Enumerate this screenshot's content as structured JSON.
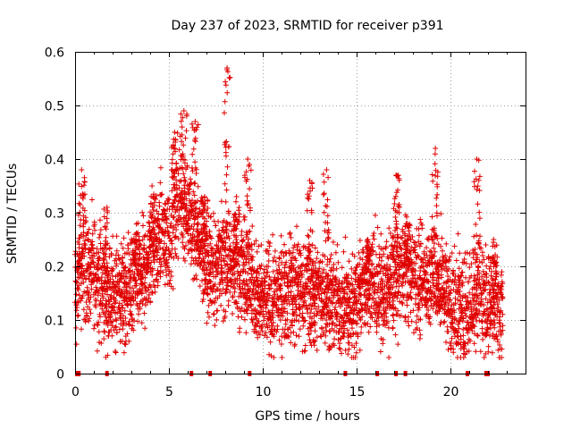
{
  "chart_data": {
    "type": "scatter",
    "title": "Day 237 of 2023, SRMTID for receiver p391",
    "xlabel": "GPS time / hours",
    "ylabel": "SRMTID / TECUs",
    "xlim": [
      0,
      24
    ],
    "ylim": [
      0,
      0.6
    ],
    "xticks": [
      0,
      5,
      10,
      15,
      20
    ],
    "yticks": [
      0,
      0.1,
      0.2,
      0.3,
      0.4,
      0.5,
      0.6
    ],
    "grid": true,
    "marker": "plus",
    "color": "#e00000",
    "series": [
      {
        "name": "SRMTID",
        "baseline": [
          [
            0.0,
            0.18
          ],
          [
            0.5,
            0.2
          ],
          [
            1.0,
            0.19
          ],
          [
            1.5,
            0.16
          ],
          [
            2.0,
            0.14
          ],
          [
            2.5,
            0.15
          ],
          [
            3.0,
            0.17
          ],
          [
            3.5,
            0.18
          ],
          [
            4.0,
            0.21
          ],
          [
            4.5,
            0.26
          ],
          [
            5.0,
            0.25
          ],
          [
            5.5,
            0.32
          ],
          [
            6.0,
            0.3
          ],
          [
            6.5,
            0.26
          ],
          [
            7.0,
            0.21
          ],
          [
            7.5,
            0.2
          ],
          [
            8.0,
            0.21
          ],
          [
            8.5,
            0.2
          ],
          [
            9.0,
            0.2
          ],
          [
            9.5,
            0.16
          ],
          [
            10.0,
            0.13
          ],
          [
            10.5,
            0.14
          ],
          [
            11.0,
            0.15
          ],
          [
            11.5,
            0.16
          ],
          [
            12.0,
            0.16
          ],
          [
            12.5,
            0.15
          ],
          [
            13.0,
            0.15
          ],
          [
            13.5,
            0.14
          ],
          [
            14.0,
            0.13
          ],
          [
            14.5,
            0.12
          ],
          [
            15.0,
            0.14
          ],
          [
            15.5,
            0.17
          ],
          [
            16.0,
            0.17
          ],
          [
            16.5,
            0.15
          ],
          [
            17.0,
            0.18
          ],
          [
            17.5,
            0.2
          ],
          [
            18.0,
            0.18
          ],
          [
            18.5,
            0.17
          ],
          [
            19.0,
            0.19
          ],
          [
            19.5,
            0.17
          ],
          [
            20.0,
            0.13
          ],
          [
            20.5,
            0.12
          ],
          [
            21.0,
            0.12
          ],
          [
            21.5,
            0.16
          ],
          [
            22.0,
            0.12
          ],
          [
            22.5,
            0.14
          ],
          [
            22.8,
            0.12
          ]
        ],
        "spread": 0.06,
        "spikes": [
          [
            0.35,
            0.38
          ],
          [
            1.7,
            0.31
          ],
          [
            3.3,
            0.26
          ],
          [
            4.1,
            0.35
          ],
          [
            5.3,
            0.45
          ],
          [
            5.8,
            0.49
          ],
          [
            6.4,
            0.47
          ],
          [
            6.9,
            0.33
          ],
          [
            8.1,
            0.57
          ],
          [
            8.6,
            0.33
          ],
          [
            9.2,
            0.4
          ],
          [
            12.5,
            0.36
          ],
          [
            13.4,
            0.38
          ],
          [
            15.6,
            0.25
          ],
          [
            17.1,
            0.37
          ],
          [
            17.7,
            0.28
          ],
          [
            19.2,
            0.42
          ],
          [
            21.4,
            0.4
          ],
          [
            22.3,
            0.25
          ]
        ],
        "gap_markers": [
          0.1,
          0.2,
          1.7,
          6.2,
          7.2,
          9.3,
          14.4,
          16.1,
          17.1,
          17.6,
          20.9,
          21.9,
          22.0
        ]
      }
    ]
  }
}
